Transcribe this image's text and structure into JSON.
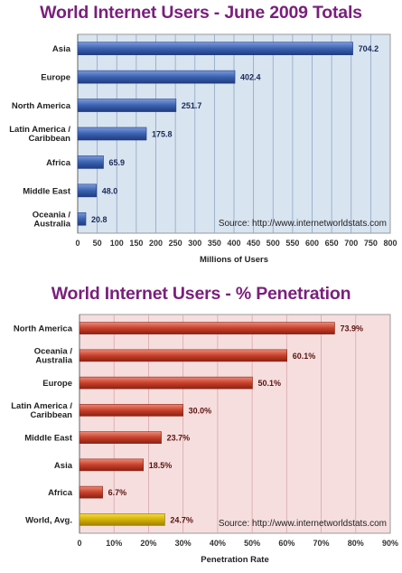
{
  "chart_data": [
    {
      "type": "bar",
      "orientation": "horizontal",
      "title": "World Internet Users - June 2009 Totals",
      "xlabel": "Millions of Users",
      "ylabel": "",
      "categories": [
        "Asia",
        "Europe",
        "North America",
        "Latin America / Caribbean",
        "Africa",
        "Middle East",
        "Oceania / Australia"
      ],
      "values": [
        704.2,
        402.4,
        251.7,
        175.8,
        65.9,
        48.0,
        20.8
      ],
      "value_labels": [
        "704.2",
        "402.4",
        "251.7",
        "175.8",
        "65.9",
        "48.0",
        "20.8"
      ],
      "xlim": [
        0,
        800
      ],
      "ticks": [
        "0",
        "50",
        "100",
        "150",
        "200",
        "250",
        "300",
        "350",
        "400",
        "450",
        "500",
        "550",
        "600",
        "650",
        "700",
        "750",
        "800"
      ],
      "source": "Source: http://www.internetworldstats.com",
      "grid": true,
      "colors": {
        "bar": "#3b62b0",
        "background": "#d8e4f0",
        "grid": "#8fa6c4"
      }
    },
    {
      "type": "bar",
      "orientation": "horizontal",
      "title": "World Internet Users - % Penetration",
      "xlabel": "Penetration Rate",
      "ylabel": "",
      "categories": [
        "North America",
        "Oceania / Australia",
        "Europe",
        "Latin America / Caribbean",
        "Middle East",
        "Asia",
        "Africa",
        "World, Avg."
      ],
      "values": [
        73.9,
        60.1,
        50.1,
        30.0,
        23.7,
        18.5,
        6.7,
        24.7
      ],
      "value_labels": [
        "73.9%",
        "60.1%",
        "50.1%",
        "30.0%",
        "23.7%",
        "18.5%",
        "6.7%",
        "24.7%"
      ],
      "xlim": [
        0,
        90
      ],
      "ticks": [
        "0",
        "10%",
        "20%",
        "30%",
        "40%",
        "50%",
        "60%",
        "70%",
        "80%",
        "90%"
      ],
      "source": "Source: http://www.internetworldstats.com",
      "grid": true,
      "colors": {
        "bar": "#c8402a",
        "highlight_bar": "#d4b000",
        "background": "#f6dede",
        "grid": "#d9a8a8"
      }
    }
  ]
}
